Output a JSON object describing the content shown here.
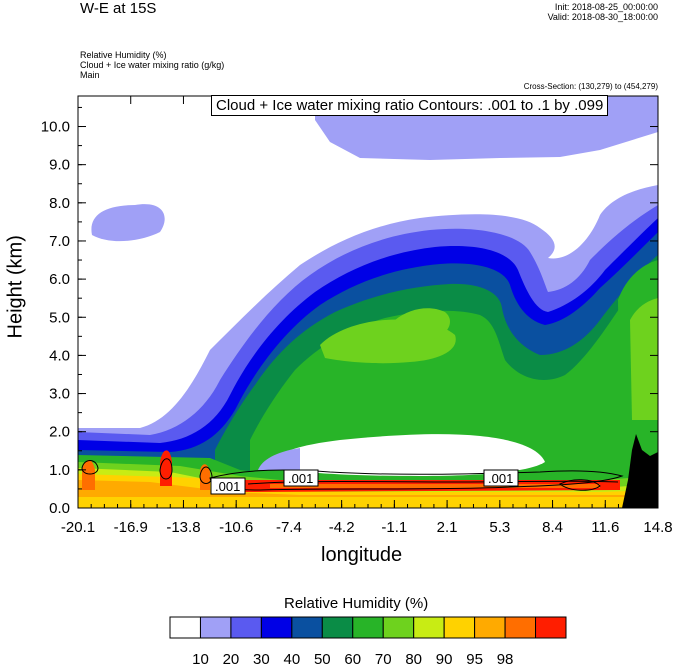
{
  "header": {
    "title": "W-E at 15S",
    "init": "Init: 2018-08-25_00:00:00",
    "valid": "Valid: 2018-08-30_18:00:00",
    "field1": "Relative Humidity   (%)",
    "field2": "Cloud + Ice water mixing ratio   (g/kg)",
    "field3": "Main",
    "cross_section": "Cross-Section: (130,279) to (454,279)"
  },
  "contour_label": "Cloud + Ice water mixing ratio Contours: .001 to .1 by .099",
  "contour_inline_labels": [
    ".001",
    ".001",
    ".001"
  ],
  "chart_data": {
    "type": "heatmap",
    "xlabel": "longitude",
    "ylabel": "Height (km)",
    "x_ticks": [
      "-20.1",
      "-16.9",
      "-13.8",
      "-10.6",
      "-7.4",
      "-4.2",
      "-1.1",
      "2.1",
      "5.3",
      "8.4",
      "11.6",
      "14.8"
    ],
    "y_ticks": [
      "0.0",
      "1.0",
      "2.0",
      "3.0",
      "4.0",
      "5.0",
      "6.0",
      "7.0",
      "8.0",
      "9.0",
      "10.0"
    ],
    "xlim": [
      -20.1,
      14.8
    ],
    "ylim": [
      0,
      10.8
    ],
    "colorbar": {
      "title": "Relative Humidity  (%)",
      "levels": [
        "10",
        "20",
        "30",
        "40",
        "50",
        "60",
        "70",
        "80",
        "90",
        "95",
        "98"
      ],
      "colors": [
        "#ffffff",
        "#a0a0f6",
        "#5a5af0",
        "#0000e6",
        "#0a50a0",
        "#0a8c46",
        "#28b428",
        "#6ed21e",
        "#c8ec14",
        "#ffd200",
        "#ffaa00",
        "#ff6e00",
        "#ff1e00"
      ]
    }
  }
}
